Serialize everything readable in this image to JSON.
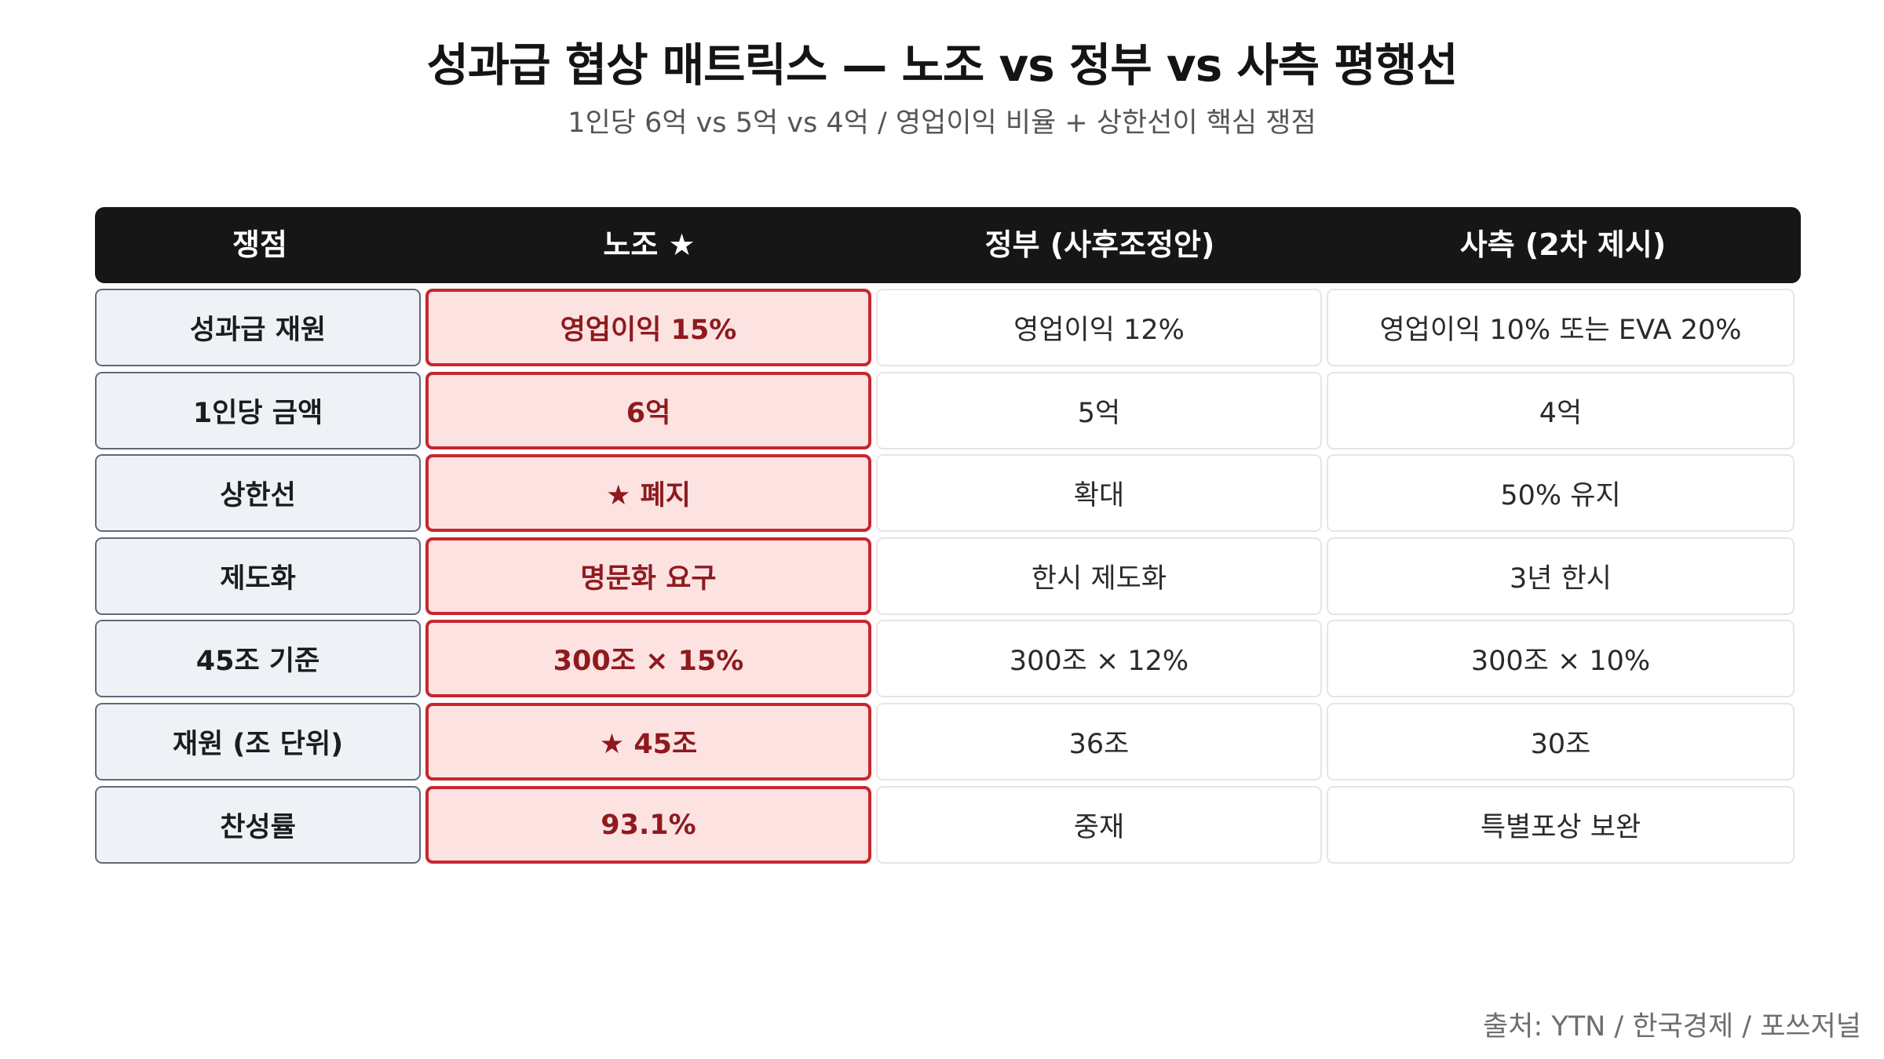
{
  "title": "성과급 협상 매트릭스 — 노조 vs 정부 vs 사측 평행선",
  "subtitle": "1인당 6억 vs 5억 vs 4억 / 영업이익 비율 + 상한선이 핵심 쟁점",
  "table": {
    "headers": [
      "쟁점",
      "노조 ★",
      "정부 (사후조정안)",
      "사측 (2차 제시)"
    ],
    "rows": [
      [
        "성과급 재원",
        "영업이익 15%",
        "영업이익 12%",
        "영업이익 10% 또는 EVA 20%"
      ],
      [
        "1인당 금액",
        "6억",
        "5억",
        "4억"
      ],
      [
        "상한선",
        "★ 폐지",
        "확대",
        "50% 유지"
      ],
      [
        "제도화",
        "명문화 요구",
        "한시 제도화",
        "3년 한시"
      ],
      [
        "45조 기준",
        "300조 × 15%",
        "300조 × 12%",
        "300조 × 10%"
      ],
      [
        "재원 (조 단위)",
        "★ 45조",
        "36조",
        "30조"
      ],
      [
        "찬성률",
        "93.1%",
        "중재",
        "특별포상 보완"
      ]
    ]
  },
  "colors": {
    "header_bg": "#161616",
    "label_bg": "#eef2f7",
    "highlight_bg": "#fde2e2",
    "highlight_border": "#c5282e",
    "highlight_text": "#8e1a1e"
  },
  "source": "출처: YTN / 한국경제 / 포쓰저널"
}
